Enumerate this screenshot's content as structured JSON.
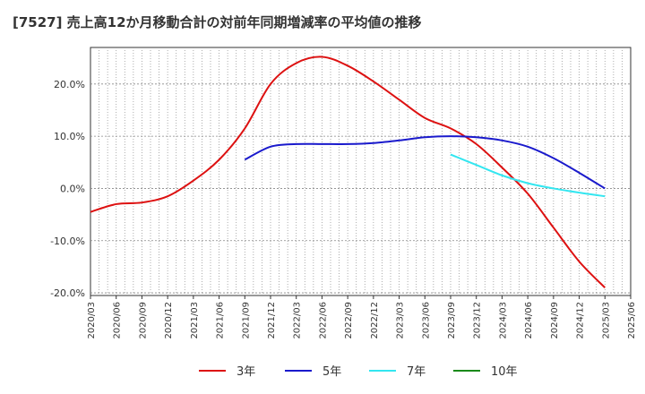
{
  "chart_data": {
    "type": "line",
    "title": "[7527]  売上高12か月移動合計の対前年同期増減率の平均値の推移",
    "x_labels": [
      "2020/03",
      "2020/06",
      "2020/09",
      "2020/12",
      "2021/03",
      "2021/06",
      "2021/09",
      "2021/12",
      "2022/03",
      "2022/06",
      "2022/09",
      "2022/12",
      "2023/03",
      "2023/06",
      "2023/09",
      "2023/12",
      "2024/03",
      "2024/06",
      "2024/09",
      "2024/12",
      "2025/03",
      "2025/06"
    ],
    "y_ticks": [
      20,
      10,
      0,
      -10,
      -20
    ],
    "y_tick_labels": [
      "20.0%",
      "10.0%",
      "0.0%",
      "-10.0%",
      "-20.0%"
    ],
    "ylim": [
      -20.5,
      27
    ],
    "grid": true,
    "legend_position": "bottom",
    "series": [
      {
        "name": "3年",
        "color": "#dd1111",
        "values": [
          -4.5,
          -3.0,
          -2.7,
          -1.5,
          1.5,
          5.5,
          11.5,
          20.0,
          24.0,
          25.2,
          23.5,
          20.5,
          17.0,
          13.5,
          11.5,
          8.5,
          4.0,
          -1.0,
          -7.5,
          -14.0,
          -19.0,
          null
        ]
      },
      {
        "name": "5年",
        "color": "#1a1acc",
        "values": [
          null,
          null,
          null,
          null,
          null,
          null,
          5.5,
          8.0,
          8.5,
          8.5,
          8.5,
          8.7,
          9.2,
          9.8,
          10.0,
          9.8,
          9.2,
          8.0,
          5.8,
          3.0,
          0.0,
          null
        ]
      },
      {
        "name": "7年",
        "color": "#33e6f0",
        "values": [
          null,
          null,
          null,
          null,
          null,
          null,
          null,
          null,
          null,
          null,
          null,
          null,
          null,
          null,
          6.5,
          4.5,
          2.5,
          1.0,
          0.0,
          -0.8,
          -1.5,
          null
        ]
      },
      {
        "name": "10年",
        "color": "#1a8a1a",
        "values": [
          null,
          null,
          null,
          null,
          null,
          null,
          null,
          null,
          null,
          null,
          null,
          null,
          null,
          null,
          null,
          null,
          null,
          null,
          null,
          null,
          null,
          null
        ]
      }
    ]
  }
}
